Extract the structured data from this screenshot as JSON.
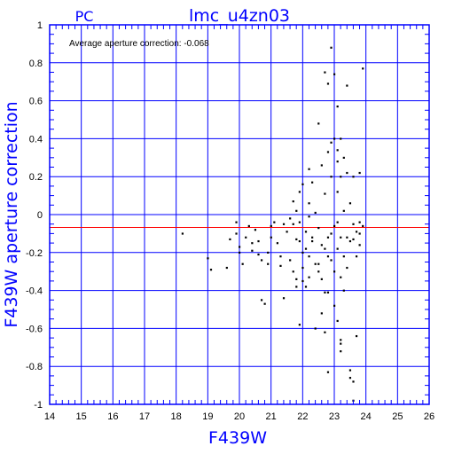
{
  "chart_data": {
    "type": "scatter",
    "title": "lmc_u4zn03",
    "subtitle": "PC",
    "xlabel": "F439W",
    "ylabel": "F439W aperture correction",
    "annotation": "Average aperture correction: -0.068",
    "xlim": [
      14,
      26
    ],
    "ylim": [
      -1,
      1
    ],
    "xticks": [
      14,
      15,
      16,
      17,
      18,
      19,
      20,
      21,
      22,
      23,
      24,
      25,
      26
    ],
    "yticks": [
      -1,
      -0.8,
      -0.6,
      -0.4,
      -0.2,
      0,
      0.2,
      0.4,
      0.6,
      0.8,
      1
    ],
    "ytick_labels": [
      "-1",
      "-0.8",
      "-0.6",
      "-0.4",
      "-0.2",
      "0",
      "0.2",
      "0.4",
      "0.6",
      "0.8",
      "1"
    ],
    "grid": true,
    "reference_line": {
      "y": -0.068,
      "color": "#ff0000"
    },
    "colors": {
      "frame": "#0000ff",
      "grid": "#0000ff",
      "points": "#000000",
      "ref_line": "#ff0000",
      "labels": "#0000ff"
    },
    "points": [
      [
        18.2,
        -0.1
      ],
      [
        19.0,
        -0.23
      ],
      [
        19.1,
        -0.29
      ],
      [
        19.6,
        -0.28
      ],
      [
        19.7,
        -0.13
      ],
      [
        19.9,
        -0.04
      ],
      [
        19.9,
        -0.1
      ],
      [
        20.0,
        -0.17
      ],
      [
        20.0,
        -0.2
      ],
      [
        20.1,
        -0.26
      ],
      [
        20.2,
        -0.12
      ],
      [
        20.3,
        -0.06
      ],
      [
        20.4,
        -0.15
      ],
      [
        20.4,
        -0.19
      ],
      [
        20.5,
        -0.08
      ],
      [
        20.6,
        -0.14
      ],
      [
        20.6,
        -0.21
      ],
      [
        20.7,
        -0.24
      ],
      [
        20.7,
        -0.45
      ],
      [
        20.8,
        -0.47
      ],
      [
        20.9,
        -0.2
      ],
      [
        20.9,
        -0.26
      ],
      [
        21.0,
        -0.06
      ],
      [
        21.0,
        -0.12
      ],
      [
        21.1,
        -0.04
      ],
      [
        21.2,
        -0.15
      ],
      [
        21.3,
        -0.22
      ],
      [
        21.3,
        -0.27
      ],
      [
        21.4,
        -0.05
      ],
      [
        21.4,
        -0.44
      ],
      [
        21.5,
        -0.09
      ],
      [
        21.6,
        -0.02
      ],
      [
        21.6,
        -0.24
      ],
      [
        21.7,
        -0.05
      ],
      [
        21.7,
        -0.3
      ],
      [
        21.7,
        0.07
      ],
      [
        21.8,
        -0.13
      ],
      [
        21.8,
        0.02
      ],
      [
        21.8,
        -0.38
      ],
      [
        21.8,
        -0.34
      ],
      [
        21.9,
        -0.14
      ],
      [
        21.9,
        0.12
      ],
      [
        21.9,
        -0.04
      ],
      [
        21.9,
        -0.58
      ],
      [
        22.0,
        0.16
      ],
      [
        22.0,
        -0.2
      ],
      [
        22.0,
        -0.28
      ],
      [
        22.0,
        -0.35
      ],
      [
        22.1,
        -0.09
      ],
      [
        22.1,
        -0.18
      ],
      [
        22.1,
        -0.38
      ],
      [
        22.2,
        0.24
      ],
      [
        22.2,
        0.06
      ],
      [
        22.2,
        -0.01
      ],
      [
        22.2,
        -0.22
      ],
      [
        22.2,
        -0.33
      ],
      [
        22.3,
        0.17
      ],
      [
        22.3,
        -0.12
      ],
      [
        22.3,
        -0.14
      ],
      [
        22.4,
        -0.6
      ],
      [
        22.4,
        -0.26
      ],
      [
        22.4,
        0.01
      ],
      [
        22.5,
        0.48
      ],
      [
        22.5,
        -0.07
      ],
      [
        22.5,
        -0.26
      ],
      [
        22.5,
        -0.3
      ],
      [
        22.6,
        0.26
      ],
      [
        22.6,
        -0.16
      ],
      [
        22.6,
        -0.34
      ],
      [
        22.6,
        -0.52
      ],
      [
        22.7,
        0.75
      ],
      [
        22.7,
        0.11
      ],
      [
        22.7,
        -0.18
      ],
      [
        22.7,
        -0.41
      ],
      [
        22.7,
        -0.62
      ],
      [
        22.8,
        0.69
      ],
      [
        22.8,
        0.33
      ],
      [
        22.8,
        -0.12
      ],
      [
        22.8,
        -0.22
      ],
      [
        22.8,
        -0.41
      ],
      [
        22.8,
        -0.83
      ],
      [
        22.9,
        0.88
      ],
      [
        22.9,
        0.38
      ],
      [
        22.9,
        0.2
      ],
      [
        22.9,
        -0.1
      ],
      [
        22.9,
        -0.24
      ],
      [
        23.0,
        0.74
      ],
      [
        23.0,
        0.4
      ],
      [
        23.0,
        -0.06
      ],
      [
        23.0,
        -0.3
      ],
      [
        23.0,
        -0.48
      ],
      [
        23.1,
        0.57
      ],
      [
        23.1,
        0.34
      ],
      [
        23.1,
        0.28
      ],
      [
        23.1,
        0.12
      ],
      [
        23.1,
        -0.04
      ],
      [
        23.1,
        -0.18
      ],
      [
        23.1,
        -0.56
      ],
      [
        23.2,
        0.4
      ],
      [
        23.2,
        0.2
      ],
      [
        23.2,
        -0.12
      ],
      [
        23.2,
        -0.33
      ],
      [
        23.2,
        -0.66
      ],
      [
        23.2,
        -0.68
      ],
      [
        23.2,
        -0.72
      ],
      [
        23.3,
        0.3
      ],
      [
        23.3,
        0.02
      ],
      [
        23.3,
        -0.22
      ],
      [
        23.3,
        -0.4
      ],
      [
        23.4,
        0.68
      ],
      [
        23.4,
        0.22
      ],
      [
        23.4,
        -0.12
      ],
      [
        23.4,
        -0.28
      ],
      [
        23.5,
        0.06
      ],
      [
        23.5,
        -0.14
      ],
      [
        23.5,
        -0.82
      ],
      [
        23.5,
        -0.86
      ],
      [
        23.6,
        0.2
      ],
      [
        23.6,
        -0.05
      ],
      [
        23.6,
        -0.13
      ],
      [
        23.6,
        -0.88
      ],
      [
        23.7,
        -0.64
      ],
      [
        23.7,
        -0.09
      ],
      [
        23.7,
        -0.22
      ],
      [
        23.8,
        0.22
      ],
      [
        23.8,
        -0.04
      ],
      [
        23.8,
        -0.1
      ],
      [
        23.8,
        -0.16
      ],
      [
        23.9,
        -0.06
      ],
      [
        23.9,
        0.77
      ],
      [
        23.6,
        -0.98
      ]
    ]
  }
}
